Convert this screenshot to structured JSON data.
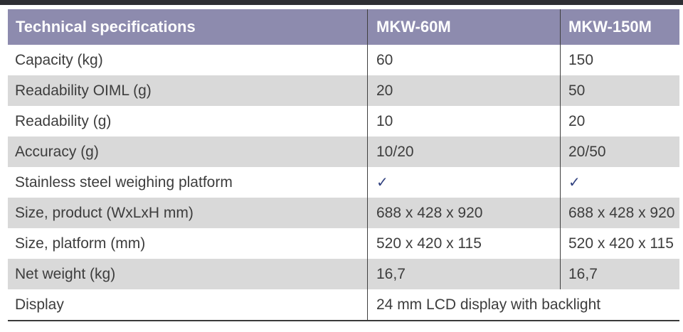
{
  "page": {
    "description": "Technical specification table for MKW scale models",
    "colors": {
      "header_bg": "#8d8bae",
      "row_gray": "#d9d9d9",
      "row_white": "#ffffff",
      "divider": "#3f3f3f",
      "text": "#3d3d3d",
      "checkmark": "#31417f",
      "top_bar": "#2e2e33",
      "bottom_rule": "#3a3a3a"
    }
  },
  "table": {
    "header": {
      "col1": "Technical specifications",
      "col2": "MKW-60M",
      "col3": "MKW-150M"
    },
    "rows": [
      {
        "label": "Capacity (kg)",
        "mkw60": "60",
        "mkw150": "150"
      },
      {
        "label": "Readability OIML (g)",
        "mkw60": "20",
        "mkw150": "50"
      },
      {
        "label": "Readability (g)",
        "mkw60": "10",
        "mkw150": "20"
      },
      {
        "label": "Accuracy (g)",
        "mkw60": "10/20",
        "mkw150": "20/50"
      },
      {
        "label": "Stainless steel weighing platform",
        "mkw60": "✓",
        "mkw150": "✓",
        "check": true
      },
      {
        "label": "Size, product (WxLxH mm)",
        "mkw60": "688 x 428 x 920",
        "mkw150": "688 x 428 x 920"
      },
      {
        "label": "Size, platform (mm)",
        "mkw60": "520 x 420 x 115",
        "mkw150": "520 x 420 x 115"
      },
      {
        "label": "Net weight (kg)",
        "mkw60": "16,7",
        "mkw150": "16,7"
      },
      {
        "label": "Display",
        "span": "24 mm LCD display with backlight"
      }
    ]
  }
}
